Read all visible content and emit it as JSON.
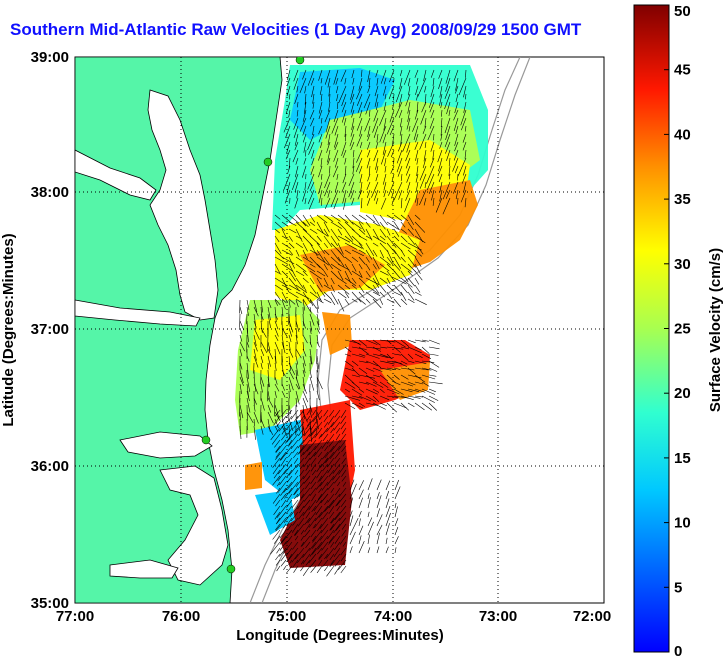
{
  "title": "Southern Mid-Atlantic Raw Velocities (1 Day Avg) 2008/09/29 1500 GMT",
  "map": {
    "xlabel": "Longitude (Degrees:Minutes)",
    "ylabel": "Latitude (Degrees:Minutes)",
    "x_ticks": [
      "77:00",
      "76:00",
      "75:00",
      "74:00",
      "73:00",
      "72:00"
    ],
    "y_ticks": [
      "39:00",
      "38:00",
      "37:00",
      "36:00",
      "35:00"
    ],
    "grid": true,
    "colors": {
      "land": "#55f5a8",
      "sea": "#ffffff",
      "title": "#1010ff",
      "hf_sites": "#22cc22"
    }
  },
  "colorbar": {
    "label": "Surface Velocity (cm/s)",
    "ticks": [
      "50",
      "45",
      "40",
      "35",
      "30",
      "25",
      "20",
      "15",
      "10",
      "5",
      "0"
    ],
    "colormap": "jet",
    "range": [
      0,
      50
    ]
  }
}
